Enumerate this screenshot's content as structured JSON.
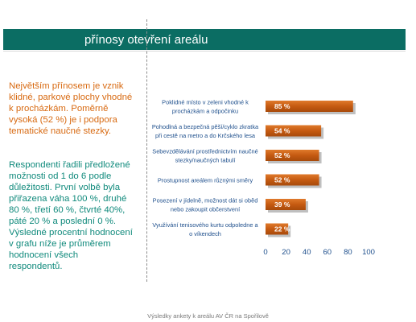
{
  "header": {
    "title": "přínosy otevření areálu",
    "band_color": "#0b6d63"
  },
  "left_text": {
    "paragraph1": [
      "Největším přínosem je vznik",
      "klidné, parkové plochy vhodné",
      "k procházkám. Poměrně",
      "vysoká (52 %) je i podpora",
      "tematické naučné stezky."
    ],
    "paragraph2": [
      "Respondenti řadili předložené",
      "možnosti od 1 do 6 podle",
      "důležitosti. První volbě byla",
      "přiřazena váha 100 %, druhé",
      "80 %, třetí 60 %, čtvrté 40%,",
      "páté 20 % a poslední 0 %.",
      "Výsledné procentní hodnocení",
      "v grafu níže je průměrem",
      "hodnocení všech",
      "respondentů."
    ],
    "color_paragraph1": "#d86a12",
    "color_paragraph2": "#108a7c"
  },
  "footer": {
    "caption": "Výsledky ankety k areálu AV ČR na Spořilově"
  },
  "chart_data": {
    "type": "bar",
    "orientation": "horizontal",
    "title": "",
    "xlabel": "",
    "ylabel": "",
    "xlim": [
      0,
      100
    ],
    "x_ticks": [
      "0",
      "20",
      "40",
      "60",
      "80",
      "100"
    ],
    "categories": [
      [
        "Poklidné místo v zeleni vhodné k",
        "procházkám a odpočinku"
      ],
      [
        "Pohodlná a bezpečná pěší/cyklo zkratka",
        "při cestě na metro a do Krčského lesa"
      ],
      [
        "Sebevzdělávání prostřednictvím naučné",
        "stezky/naučných tabulí"
      ],
      [
        "Prostupnost areálem různými směry"
      ],
      [
        "Posezení v jídelně, možnost dát si oběd",
        "nebo zakoupit občerstvení"
      ],
      [
        "Využívání tenisového kurtu odpoledne a",
        "o víkendech"
      ]
    ],
    "values": [
      85,
      54,
      52,
      52,
      39,
      22
    ],
    "data_labels": [
      "85 %",
      "54 %",
      "52 %",
      "52 %",
      "39 %",
      "22 %"
    ],
    "bar_color": "#c55a11",
    "label_color": "#1e4f8c",
    "grid": false,
    "legend": "none"
  }
}
